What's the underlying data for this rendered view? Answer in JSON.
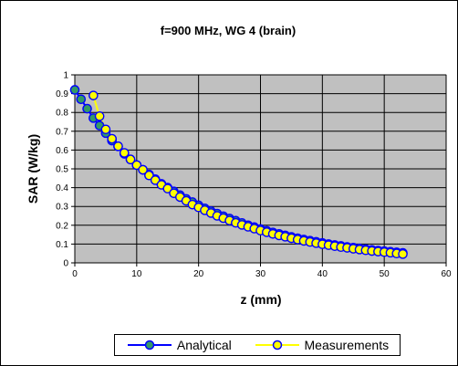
{
  "chart_data": {
    "type": "scatter",
    "title": "f=900 MHz, WG 4 (brain)",
    "xlabel": "z (mm)",
    "ylabel": "SAR (W/kg)",
    "xlim": [
      0,
      60
    ],
    "ylim": [
      0,
      1
    ],
    "x_ticks": [
      "0",
      "10",
      "20",
      "30",
      "40",
      "50",
      "60"
    ],
    "y_ticks": [
      "0",
      "0.1",
      "0.2",
      "0.3",
      "0.4",
      "0.5",
      "0.6",
      "0.7",
      "0.8",
      "0.9",
      "1"
    ],
    "grid": true,
    "plot_background": "#c0c0c0",
    "legend_position": "bottom",
    "series": [
      {
        "name": "Analytical",
        "line_color": "#0000ff",
        "marker_fill": "#339966",
        "x": [
          0,
          1,
          2,
          3,
          4,
          5,
          6,
          7,
          8,
          9,
          10,
          11,
          12,
          13,
          14,
          15,
          16,
          17,
          18,
          19,
          20,
          21,
          22,
          23,
          24,
          25,
          26,
          27,
          28,
          29,
          30,
          31,
          32,
          33,
          34,
          35,
          36,
          37,
          38,
          39,
          40,
          41,
          42,
          43,
          44,
          45,
          46,
          47,
          48,
          49,
          50,
          51,
          52,
          53
        ],
        "y": [
          0.92,
          0.87,
          0.82,
          0.77,
          0.73,
          0.69,
          0.65,
          0.62,
          0.58,
          0.55,
          0.52,
          0.495,
          0.47,
          0.445,
          0.42,
          0.4,
          0.38,
          0.36,
          0.34,
          0.323,
          0.306,
          0.29,
          0.275,
          0.262,
          0.248,
          0.236,
          0.224,
          0.212,
          0.2,
          0.19,
          0.18,
          0.171,
          0.162,
          0.154,
          0.146,
          0.138,
          0.131,
          0.124,
          0.118,
          0.112,
          0.106,
          0.1,
          0.095,
          0.09,
          0.085,
          0.081,
          0.077,
          0.073,
          0.069,
          0.065,
          0.062,
          0.059,
          0.056,
          0.053
        ]
      },
      {
        "name": "Measurements",
        "line_color": "#ffff00",
        "marker_fill": "#ffff00",
        "x": [
          3,
          4,
          5,
          6,
          7,
          8,
          9,
          10,
          11,
          12,
          13,
          14,
          15,
          16,
          17,
          18,
          19,
          20,
          21,
          22,
          23,
          24,
          25,
          26,
          27,
          28,
          29,
          30,
          31,
          32,
          33,
          34,
          35,
          36,
          37,
          38,
          39,
          40,
          41,
          42,
          43,
          44,
          45,
          46,
          47,
          48,
          49,
          50,
          51,
          52,
          53
        ],
        "y": [
          0.89,
          0.78,
          0.71,
          0.66,
          0.62,
          0.585,
          0.55,
          0.52,
          0.495,
          0.465,
          0.44,
          0.415,
          0.395,
          0.37,
          0.35,
          0.33,
          0.31,
          0.295,
          0.28,
          0.265,
          0.25,
          0.238,
          0.225,
          0.213,
          0.202,
          0.192,
          0.182,
          0.172,
          0.163,
          0.154,
          0.146,
          0.139,
          0.131,
          0.124,
          0.117,
          0.111,
          0.105,
          0.099,
          0.094,
          0.089,
          0.084,
          0.08,
          0.075,
          0.071,
          0.067,
          0.063,
          0.06,
          0.057,
          0.054,
          0.05,
          0.047
        ]
      }
    ]
  }
}
